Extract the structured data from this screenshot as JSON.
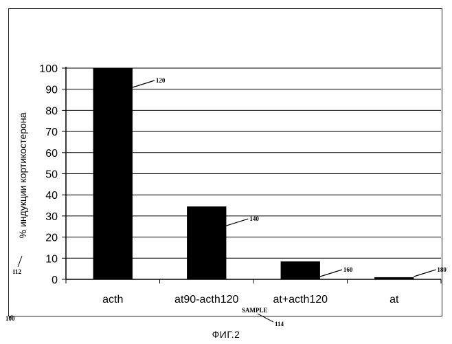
{
  "figure": {
    "caption": "ФИГ.2",
    "ref_frame": "100",
    "ref_axis_y": "112",
    "ref_axis_x": "114",
    "sample_label": "SAMPLE"
  },
  "chart_data": {
    "type": "bar",
    "title": "",
    "xlabel": "",
    "ylabel": "% индукции кортикостерона",
    "ylim": [
      0,
      100
    ],
    "yticks": [
      0,
      10,
      20,
      30,
      40,
      50,
      60,
      70,
      80,
      90,
      100
    ],
    "categories": [
      "acth",
      "at90-acth120",
      "at+acth120",
      "at"
    ],
    "values": [
      100,
      34.5,
      8.5,
      1
    ],
    "bar_refs": [
      "120",
      "140",
      "160",
      "180"
    ],
    "grid": true,
    "bar_color": "#000000"
  }
}
